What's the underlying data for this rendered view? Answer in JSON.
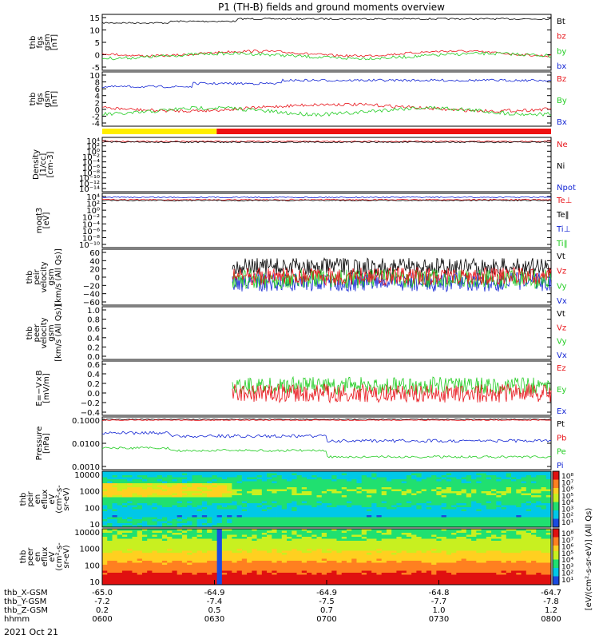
{
  "title": "P1 (TH-B) fields and ground moments overview",
  "date": "2021 Oct 21",
  "colors": {
    "black": "#000000",
    "red": "#e8141a",
    "green": "#22cc22",
    "blue": "#1426d4",
    "yellow": "#ffee00",
    "bar_red": "#ee1111"
  },
  "mode_bar": {
    "segments": [
      {
        "from": "0600",
        "to": "0630",
        "color": "yellow"
      },
      {
        "from": "0630",
        "to": "0800",
        "color": "red"
      }
    ]
  },
  "xaxis": {
    "rows": [
      {
        "label": "thb_X-GSM",
        "values": [
          "-65.0",
          "-64.9",
          "-64.9",
          "-64.8",
          "-64.7"
        ]
      },
      {
        "label": "thb_Y-GSM",
        "values": [
          "-7.2",
          "-7.4",
          "-7.5",
          "-7.7",
          "-7.8"
        ]
      },
      {
        "label": "thb_Z-GSM",
        "values": [
          "0.2",
          "0.5",
          "0.7",
          "1.0",
          "1.2"
        ]
      },
      {
        "label": "hhmm",
        "values": [
          "0600",
          "0630",
          "0700",
          "0730",
          "0800"
        ]
      }
    ]
  },
  "chart_data": [
    {
      "type": "line",
      "ylabel": [
        "thb",
        "fgs",
        "gsm",
        "[nT]"
      ],
      "yticks": [
        "15",
        "10",
        "5",
        "0",
        "-5"
      ],
      "legend": [
        {
          "name": "Bt",
          "color": "black"
        },
        {
          "name": "bz",
          "color": "red"
        },
        {
          "name": "by",
          "color": "green"
        },
        {
          "name": "bx",
          "color": "blue"
        }
      ],
      "series": [
        {
          "name": "Bt",
          "level": 13.5
        },
        {
          "name": "bz",
          "level": 0.5
        },
        {
          "name": "by",
          "level": -0.5
        }
      ]
    },
    {
      "type": "line",
      "ylabel": [
        "thb",
        "fgs",
        "gsm",
        "[nT]"
      ],
      "yticks": [
        "10",
        "8",
        "6",
        "4",
        "2",
        "0",
        "-2",
        "-4"
      ],
      "legend": [
        {
          "name": "Bz",
          "color": "red"
        },
        {
          "name": "By",
          "color": "green"
        },
        {
          "name": "Bx",
          "color": "blue"
        }
      ],
      "series": [
        {
          "name": "Bx",
          "level": 8.5
        },
        {
          "name": "Bz",
          "level": 0.5
        },
        {
          "name": "By",
          "level": -0.8
        }
      ]
    },
    {
      "type": "line",
      "ylabel": [
        "Density",
        "[1/cc]",
        "[cm-3]"
      ],
      "yticks": [
        "10⁴",
        "10²",
        "10⁰",
        "10⁻²",
        "10⁻⁴",
        "10⁻⁶",
        "10⁻⁸",
        "10⁻¹⁰",
        "10⁻¹²",
        "10⁻¹⁴"
      ],
      "legend": [
        {
          "name": "Ne",
          "color": "red"
        },
        {
          "name": "Ni",
          "color": "black"
        },
        {
          "name": "Npot",
          "color": "blue"
        }
      ]
    },
    {
      "type": "line",
      "ylabel": [
        "moqt3",
        "[eV]"
      ],
      "yticks": [
        "10⁴",
        "10²",
        "10⁰",
        "10⁻²",
        "10⁻⁴",
        "10⁻⁶",
        "10⁻⁸",
        "10⁻¹⁰"
      ],
      "legend": [
        {
          "name": "Te⊥",
          "color": "red"
        },
        {
          "name": "Te‖",
          "color": "black"
        },
        {
          "name": "Ti⊥",
          "color": "blue"
        },
        {
          "name": "Ti‖",
          "color": "green"
        }
      ]
    },
    {
      "type": "line",
      "ylabel": [
        "thb",
        "peir",
        "velocity",
        "gsm",
        "[km/s (All Qs)]"
      ],
      "yticks": [
        "60",
        "40",
        "20",
        "0",
        "−20",
        "−40",
        "−60"
      ],
      "legend": [
        {
          "name": "Vt",
          "color": "black"
        },
        {
          "name": "Vz",
          "color": "red"
        },
        {
          "name": "Vy",
          "color": "green"
        },
        {
          "name": "Vx",
          "color": "blue"
        }
      ],
      "series": [
        {
          "name": "Vt",
          "level": 25
        },
        {
          "name": "Vz",
          "level": 0
        },
        {
          "name": "Vy",
          "level": -5
        },
        {
          "name": "Vx",
          "level": -15
        }
      ]
    },
    {
      "type": "line",
      "ylabel": [
        "thb",
        "peer",
        "velocity",
        "gsm",
        "[km/s (All Qs)]"
      ],
      "yticks": [
        "1.0",
        "0.8",
        "0.6",
        "0.4",
        "0.2",
        "0.0"
      ],
      "legend": [
        {
          "name": "Vt",
          "color": "black"
        },
        {
          "name": "Vz",
          "color": "red"
        },
        {
          "name": "Vy",
          "color": "green"
        },
        {
          "name": "Vx",
          "color": "blue"
        }
      ]
    },
    {
      "type": "line",
      "ylabel": [
        "E=−V×B",
        "[mV/m]"
      ],
      "yticks": [
        "0.6",
        "0.4",
        "0.2",
        "0.0",
        "−0.2",
        "−0.4"
      ],
      "legend": [
        {
          "name": "Ez",
          "color": "red"
        },
        {
          "name": "Ey",
          "color": "green"
        },
        {
          "name": "Ex",
          "color": "blue"
        }
      ],
      "series": [
        {
          "name": "Ey",
          "level": 0.15
        },
        {
          "name": "Ez",
          "level": 0.05
        }
      ]
    },
    {
      "type": "line",
      "ylabel": [
        "Pressure",
        "[nPa]"
      ],
      "yticks": [
        "0.1000",
        "0.0100",
        "0.0010"
      ],
      "legend": [
        {
          "name": "Pt",
          "color": "black"
        },
        {
          "name": "Pb",
          "color": "red"
        },
        {
          "name": "Pe",
          "color": "green"
        },
        {
          "name": "Pi",
          "color": "blue"
        }
      ]
    },
    {
      "type": "heatmap",
      "ylabel": [
        "thb",
        "peir",
        "en",
        "eflux",
        "eV",
        "(cm²-s-",
        "sr-eV)"
      ],
      "yticks": [
        "10000",
        "1000",
        "100",
        "10"
      ]
    },
    {
      "type": "heatmap",
      "ylabel": [
        "thb",
        "peer",
        "en",
        "eflux",
        "eV",
        "(cm²-s-",
        "sr-eV)"
      ],
      "yticks": [
        "10000",
        "1000",
        "100",
        "10"
      ]
    }
  ],
  "colorbar": {
    "ticks": [
      "10⁸",
      "10⁷",
      "10⁶",
      "10⁵",
      "10⁴",
      "10³",
      "10²",
      "10¹"
    ],
    "label": "[eV/(cm²-s-sr-eV)] (All Qs)"
  }
}
